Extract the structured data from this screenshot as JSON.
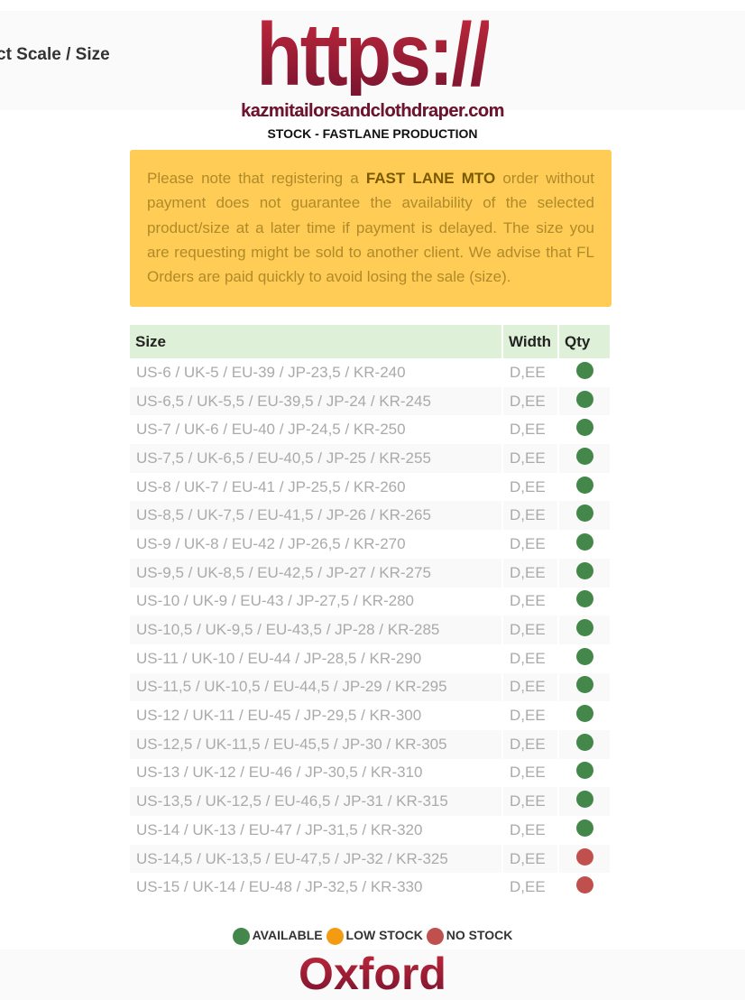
{
  "header": {
    "scale_title": "ct Scale / Size",
    "logo_text": "https://",
    "domain": "kazmitailorsandclothdraper.com",
    "stock_title": "STOCK - FASTLANE PRODUCTION"
  },
  "notice": {
    "before": "Please note that registering a ",
    "bold": "FAST LANE MTO",
    "after": " order without payment does not guarantee the availability of the selected product/size at a later time if payment is delayed. The size you are requesting might be sold to another client. We advise that FL Orders are paid quickly to avoid losing the sale (size)."
  },
  "table": {
    "headers": [
      "Size",
      "Width",
      "Qty"
    ],
    "rows": [
      {
        "size": "US-6 / UK-5 / EU-39 / JP-23,5 / KR-240",
        "width": "D,EE",
        "status": "available"
      },
      {
        "size": "US-6,5 / UK-5,5 / EU-39,5 / JP-24 / KR-245",
        "width": "D,EE",
        "status": "available"
      },
      {
        "size": "US-7 / UK-6 / EU-40 / JP-24,5 / KR-250",
        "width": "D,EE",
        "status": "available"
      },
      {
        "size": "US-7,5 / UK-6,5 / EU-40,5 / JP-25 / KR-255",
        "width": "D,EE",
        "status": "available"
      },
      {
        "size": "US-8 / UK-7 / EU-41 / JP-25,5 / KR-260",
        "width": "D,EE",
        "status": "available"
      },
      {
        "size": "US-8,5 / UK-7,5 / EU-41,5 / JP-26 / KR-265",
        "width": "D,EE",
        "status": "available"
      },
      {
        "size": "US-9 / UK-8 / EU-42 / JP-26,5 / KR-270",
        "width": "D,EE",
        "status": "available"
      },
      {
        "size": "US-9,5 / UK-8,5 / EU-42,5 / JP-27 / KR-275",
        "width": "D,EE",
        "status": "available"
      },
      {
        "size": "US-10 / UK-9 / EU-43 / JP-27,5 / KR-280",
        "width": "D,EE",
        "status": "available"
      },
      {
        "size": "US-10,5 / UK-9,5 / EU-43,5 / JP-28 / KR-285",
        "width": "D,EE",
        "status": "available"
      },
      {
        "size": "US-11 / UK-10 / EU-44 / JP-28,5 / KR-290",
        "width": "D,EE",
        "status": "available"
      },
      {
        "size": "US-11,5 / UK-10,5 / EU-44,5 / JP-29 / KR-295",
        "width": "D,EE",
        "status": "available"
      },
      {
        "size": "US-12 / UK-11 / EU-45 / JP-29,5 / KR-300",
        "width": "D,EE",
        "status": "available"
      },
      {
        "size": "US-12,5 / UK-11,5 / EU-45,5 / JP-30 / KR-305",
        "width": "D,EE",
        "status": "available"
      },
      {
        "size": "US-13 / UK-12 / EU-46 / JP-30,5 / KR-310",
        "width": "D,EE",
        "status": "available"
      },
      {
        "size": "US-13,5 / UK-12,5 / EU-46,5 / JP-31 / KR-315",
        "width": "D,EE",
        "status": "available"
      },
      {
        "size": "US-14 / UK-13 / EU-47 / JP-31,5 / KR-320",
        "width": "D,EE",
        "status": "available"
      },
      {
        "size": "US-14,5 / UK-13,5 / EU-47,5 / JP-32 / KR-325",
        "width": "D,EE",
        "status": "no_stock"
      },
      {
        "size": "US-15 / UK-14 / EU-48 / JP-32,5 / KR-330",
        "width": "D,EE",
        "status": "no_stock"
      }
    ]
  },
  "legend": {
    "available": "AVAILABLE",
    "low_stock": "LOW STOCK",
    "no_stock": "NO STOCK"
  },
  "colors": {
    "available": "#43874a",
    "low_stock": "#f39c12",
    "no_stock": "#c0504d"
  },
  "footer": {
    "logo_text": "Oxford"
  }
}
